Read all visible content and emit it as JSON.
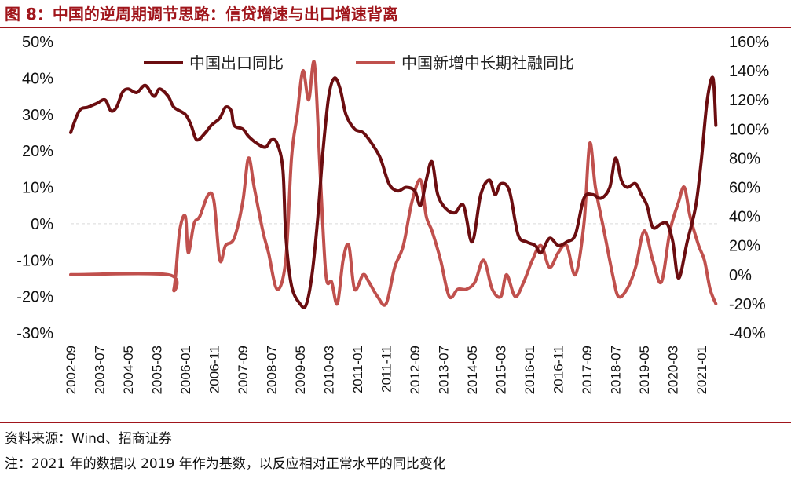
{
  "title": "图 8：中国的逆周期调节思路：信贷增速与出口增速背离",
  "source": "资料来源：Wind、招商证券",
  "note": "注：2021 年的数据以 2019 年作为基数，以反应相对正常水平的同比变化",
  "chart_data": {
    "type": "line",
    "left_axis": {
      "ticks": [
        "50%",
        "40%",
        "30%",
        "20%",
        "10%",
        "0%",
        "-10%",
        "-20%",
        "-30%"
      ],
      "ylim": [
        -30,
        50
      ]
    },
    "right_axis": {
      "ticks": [
        "160%",
        "140%",
        "120%",
        "100%",
        "80%",
        "60%",
        "40%",
        "20%",
        "0%",
        "-20%",
        "-40%"
      ],
      "ylim": [
        -40,
        160
      ]
    },
    "x_ticks": [
      "2002-09",
      "2003-07",
      "2004-05",
      "2005-03",
      "2006-01",
      "2006-11",
      "2007-09",
      "2008-07",
      "2009-05",
      "2010-03",
      "2011-01",
      "2011-11",
      "2012-09",
      "2013-07",
      "2014-05",
      "2015-03",
      "2016-01",
      "2016-11",
      "2017-09",
      "2018-07",
      "2019-05",
      "2020-03",
      "2021-01"
    ],
    "series": [
      {
        "name": "中国出口同比",
        "axis": "left",
        "color": "#6b0d10",
        "points": [
          [
            "2002-09",
            25
          ],
          [
            "2002-12",
            31
          ],
          [
            "2003-03",
            32
          ],
          [
            "2003-06",
            33
          ],
          [
            "2003-09",
            34
          ],
          [
            "2003-11",
            31
          ],
          [
            "2004-01",
            32
          ],
          [
            "2004-03",
            36
          ],
          [
            "2004-05",
            37
          ],
          [
            "2004-08",
            36
          ],
          [
            "2004-11",
            38
          ],
          [
            "2005-02",
            35
          ],
          [
            "2005-04",
            37
          ],
          [
            "2005-07",
            35
          ],
          [
            "2005-09",
            32
          ],
          [
            "2006-01",
            30
          ],
          [
            "2006-03",
            27
          ],
          [
            "2006-05",
            23
          ],
          [
            "2006-08",
            25
          ],
          [
            "2006-10",
            27
          ],
          [
            "2007-01",
            29
          ],
          [
            "2007-03",
            32
          ],
          [
            "2007-05",
            31
          ],
          [
            "2007-06",
            27
          ],
          [
            "2007-09",
            26
          ],
          [
            "2007-11",
            24
          ],
          [
            "2008-02",
            22
          ],
          [
            "2008-05",
            21
          ],
          [
            "2008-07",
            23
          ],
          [
            "2008-09",
            22
          ],
          [
            "2008-11",
            15
          ],
          [
            "2008-12",
            -3
          ],
          [
            "2009-02",
            -17
          ],
          [
            "2009-05",
            -22
          ],
          [
            "2009-07",
            -22.5
          ],
          [
            "2009-09",
            -15
          ],
          [
            "2009-11",
            0
          ],
          [
            "2010-01",
            20
          ],
          [
            "2010-03",
            35
          ],
          [
            "2010-05",
            40
          ],
          [
            "2010-07",
            37
          ],
          [
            "2010-09",
            30
          ],
          [
            "2010-12",
            26
          ],
          [
            "2011-03",
            25
          ],
          [
            "2011-06",
            22
          ],
          [
            "2011-09",
            18
          ],
          [
            "2011-12",
            11
          ],
          [
            "2012-03",
            9
          ],
          [
            "2012-06",
            10
          ],
          [
            "2012-09",
            9
          ],
          [
            "2012-11",
            5
          ],
          [
            "2013-01",
            12
          ],
          [
            "2013-03",
            17
          ],
          [
            "2013-05",
            8
          ],
          [
            "2013-08",
            4
          ],
          [
            "2013-11",
            3
          ],
          [
            "2014-02",
            5
          ],
          [
            "2014-05",
            -5
          ],
          [
            "2014-08",
            8
          ],
          [
            "2014-11",
            12
          ],
          [
            "2015-01",
            8
          ],
          [
            "2015-03",
            11
          ],
          [
            "2015-06",
            9
          ],
          [
            "2015-09",
            -3
          ],
          [
            "2015-12",
            -5
          ],
          [
            "2016-03",
            -6
          ],
          [
            "2016-05",
            -8
          ],
          [
            "2016-08",
            -4
          ],
          [
            "2016-11",
            -6
          ],
          [
            "2017-02",
            -5
          ],
          [
            "2017-05",
            -3
          ],
          [
            "2017-08",
            7
          ],
          [
            "2017-11",
            8
          ],
          [
            "2018-02",
            7
          ],
          [
            "2018-05",
            10
          ],
          [
            "2018-07",
            18
          ],
          [
            "2018-09",
            12
          ],
          [
            "2018-11",
            10
          ],
          [
            "2019-02",
            11
          ],
          [
            "2019-04",
            8
          ],
          [
            "2019-06",
            5
          ],
          [
            "2019-08",
            -1
          ],
          [
            "2019-11",
            0
          ],
          [
            "2020-01",
            0
          ],
          [
            "2020-03",
            -5
          ],
          [
            "2020-05",
            -15
          ],
          [
            "2020-08",
            -5
          ],
          [
            "2020-11",
            5
          ],
          [
            "2021-01",
            18
          ],
          [
            "2021-03",
            34
          ],
          [
            "2021-05",
            40
          ],
          [
            "2021-06",
            27
          ]
        ]
      },
      {
        "name": "中国新增中长期社融同比",
        "axis": "right",
        "color": "#c0504d",
        "points": [
          [
            "2002-09",
            0
          ],
          [
            "2005-07",
            0
          ],
          [
            "2005-09",
            -10
          ],
          [
            "2005-11",
            30
          ],
          [
            "2006-01",
            40
          ],
          [
            "2006-02",
            15
          ],
          [
            "2006-04",
            35
          ],
          [
            "2006-06",
            40
          ],
          [
            "2006-09",
            55
          ],
          [
            "2006-11",
            50
          ],
          [
            "2007-01",
            10
          ],
          [
            "2007-03",
            20
          ],
          [
            "2007-06",
            25
          ],
          [
            "2007-09",
            50
          ],
          [
            "2007-11",
            80
          ],
          [
            "2008-01",
            60
          ],
          [
            "2008-04",
            30
          ],
          [
            "2008-06",
            15
          ],
          [
            "2008-09",
            -10
          ],
          [
            "2008-12",
            10
          ],
          [
            "2009-02",
            80
          ],
          [
            "2009-04",
            110
          ],
          [
            "2009-06",
            140
          ],
          [
            "2009-08",
            120
          ],
          [
            "2009-10",
            145
          ],
          [
            "2009-12",
            70
          ],
          [
            "2010-02",
            0
          ],
          [
            "2010-04",
            -5
          ],
          [
            "2010-06",
            -20
          ],
          [
            "2010-08",
            10
          ],
          [
            "2010-10",
            20
          ],
          [
            "2010-12",
            -10
          ],
          [
            "2011-03",
            0
          ],
          [
            "2011-05",
            -5
          ],
          [
            "2011-08",
            -15
          ],
          [
            "2011-11",
            -20
          ],
          [
            "2012-02",
            5
          ],
          [
            "2012-05",
            20
          ],
          [
            "2012-08",
            50
          ],
          [
            "2012-11",
            65
          ],
          [
            "2013-01",
            40
          ],
          [
            "2013-03",
            30
          ],
          [
            "2013-06",
            10
          ],
          [
            "2013-09",
            -15
          ],
          [
            "2013-12",
            -10
          ],
          [
            "2014-03",
            -10
          ],
          [
            "2014-06",
            -5
          ],
          [
            "2014-09",
            10
          ],
          [
            "2014-12",
            -10
          ],
          [
            "2015-03",
            -15
          ],
          [
            "2015-05",
            0
          ],
          [
            "2015-08",
            -15
          ],
          [
            "2015-11",
            -5
          ],
          [
            "2016-02",
            10
          ],
          [
            "2016-05",
            20
          ],
          [
            "2016-08",
            5
          ],
          [
            "2016-11",
            15
          ],
          [
            "2017-02",
            20
          ],
          [
            "2017-05",
            0
          ],
          [
            "2017-08",
            35
          ],
          [
            "2017-10",
            90
          ],
          [
            "2017-12",
            60
          ],
          [
            "2018-03",
            30
          ],
          [
            "2018-06",
            0
          ],
          [
            "2018-08",
            -15
          ],
          [
            "2018-11",
            -10
          ],
          [
            "2019-02",
            5
          ],
          [
            "2019-05",
            30
          ],
          [
            "2019-08",
            10
          ],
          [
            "2019-11",
            -5
          ],
          [
            "2020-02",
            30
          ],
          [
            "2020-05",
            50
          ],
          [
            "2020-07",
            60
          ],
          [
            "2020-09",
            40
          ],
          [
            "2020-12",
            20
          ],
          [
            "2021-02",
            10
          ],
          [
            "2021-04",
            -10
          ],
          [
            "2021-06",
            -20
          ]
        ]
      }
    ]
  }
}
